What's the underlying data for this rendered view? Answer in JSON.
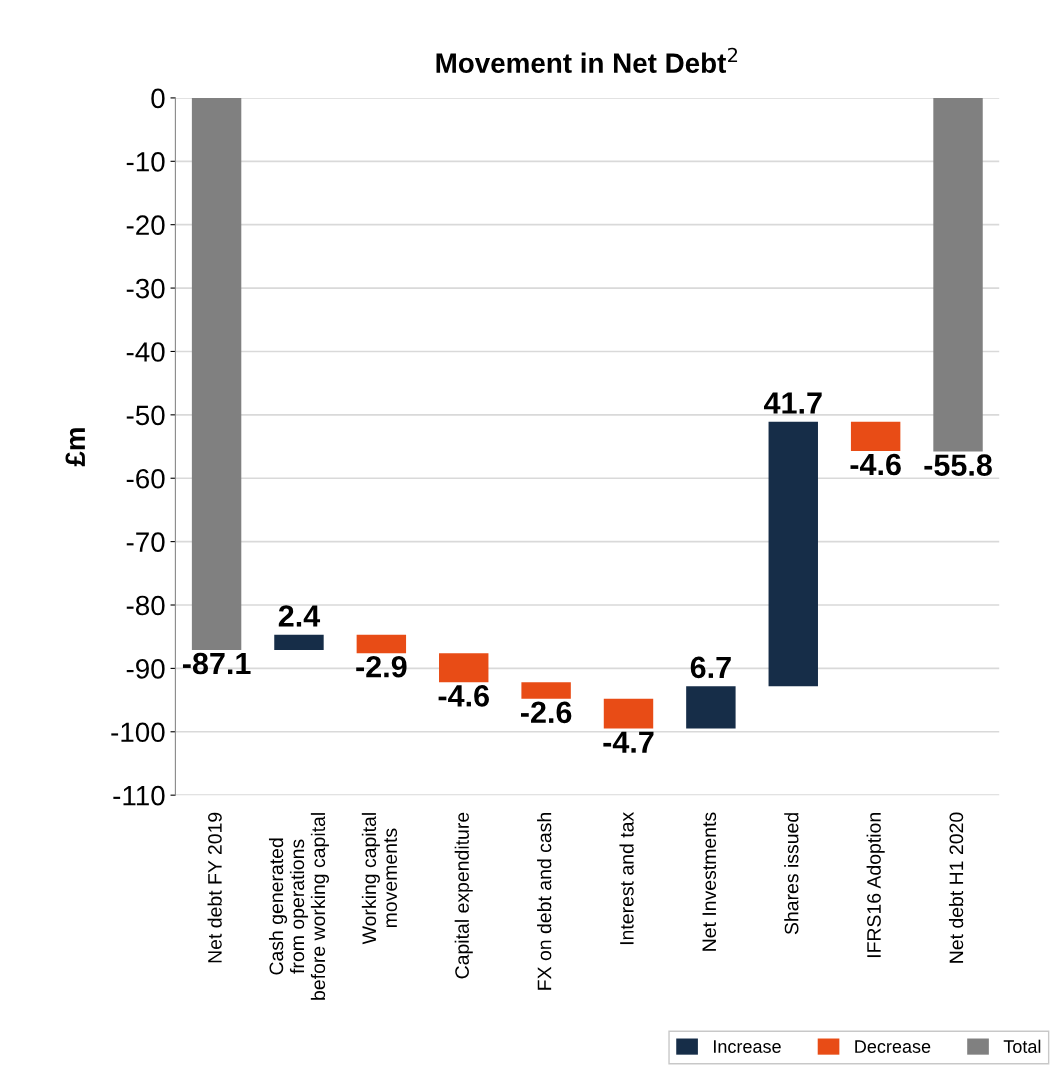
{
  "chart_data": {
    "type": "bar",
    "title": "Movement in Net Debt$^{2}$",
    "ylabel": "£m",
    "categories": [
      "Net debt FY 2019",
      "Cash generated\nfrom operations\nbefore working capital",
      "Working capital\nmovements",
      "Capital expenditure",
      "FX on debt and cash",
      "Interest and tax",
      "Net Investments",
      "Shares issued",
      "IFRS16 Adoption",
      "Net debt H1 2020"
    ],
    "series": [
      {
        "name": "Increase",
        "color": "#162d48",
        "values": [
          null,
          2.4,
          null,
          null,
          null,
          null,
          6.7,
          41.7,
          null,
          null
        ],
        "base": [
          null,
          -87.1,
          null,
          null,
          null,
          null,
          -99.5,
          -92.8,
          null,
          null
        ]
      },
      {
        "name": "Decrease",
        "color": "#e84c16",
        "values": [
          null,
          null,
          -2.9,
          -4.6,
          -2.6,
          -4.7,
          null,
          null,
          -4.6,
          null
        ],
        "base": [
          null,
          null,
          -84.7,
          -87.6,
          -92.2,
          -94.8,
          null,
          null,
          -51.1,
          null
        ]
      },
      {
        "name": "Total",
        "color": "#808080",
        "values": [
          -87.1,
          null,
          null,
          null,
          null,
          null,
          null,
          null,
          null,
          -55.8
        ],
        "base": [
          0,
          null,
          null,
          null,
          null,
          null,
          null,
          null,
          null,
          0
        ]
      }
    ],
    "ylim": [
      -110,
      0
    ],
    "yticks": [
      0,
      -10,
      -20,
      -30,
      -40,
      -50,
      -60,
      -70,
      -80,
      -90,
      -100,
      -110
    ],
    "grid": "y",
    "legend": "bottom right",
    "data_labels": true
  }
}
